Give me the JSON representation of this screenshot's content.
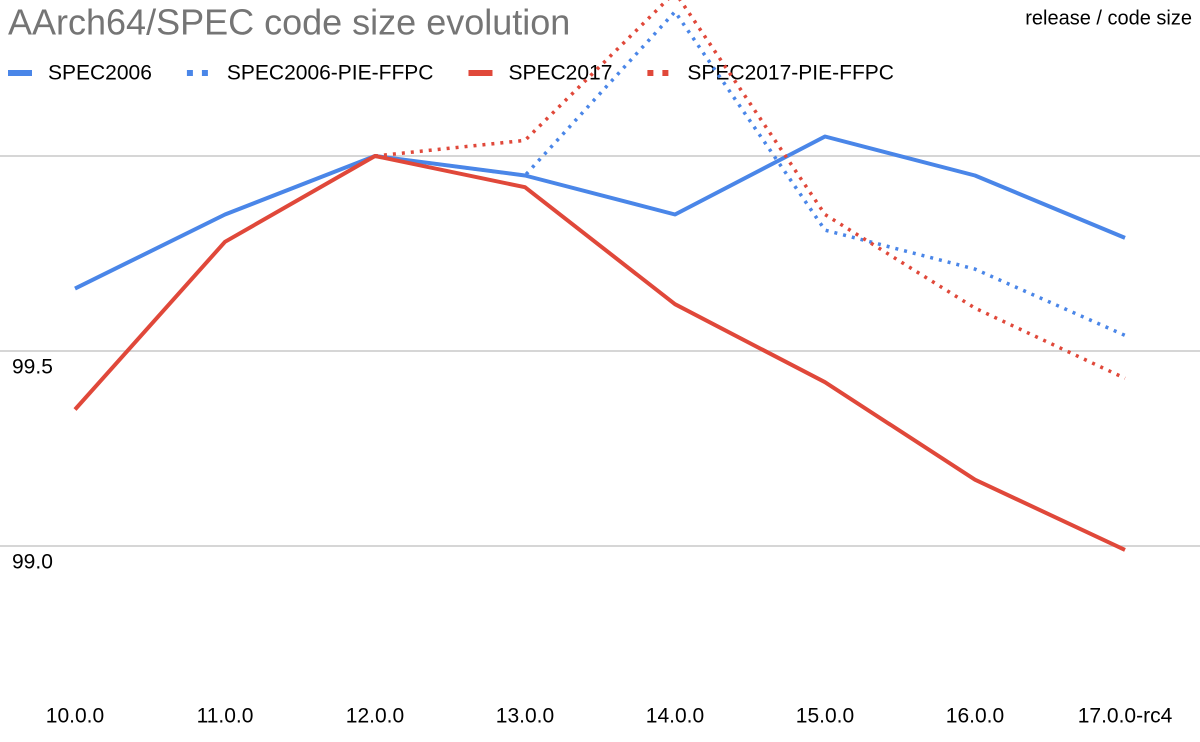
{
  "chart_data": {
    "type": "line",
    "title": "AArch64/SPEC code size evolution",
    "axis_label": "release / code size",
    "categories": [
      "10.0.0",
      "11.0.0",
      "12.0.0",
      "13.0.0",
      "14.0.0",
      "15.0.0",
      "16.0.0",
      "17.0.0-rc4"
    ],
    "series": [
      {
        "name": "SPEC2006",
        "color": "#4a86e8",
        "line_style": "solid",
        "values": [
          99.66,
          99.85,
          100.0,
          99.95,
          99.85,
          100.05,
          99.95,
          99.79
        ]
      },
      {
        "name": "SPEC2006-PIE-FFPC",
        "color": "#4a86e8",
        "line_style": "dotted",
        "values": [
          null,
          null,
          100.0,
          99.95,
          100.37,
          99.81,
          99.71,
          99.54
        ]
      },
      {
        "name": "SPEC2017",
        "color": "#e0483a",
        "line_style": "solid",
        "values": [
          99.35,
          99.78,
          100.0,
          99.92,
          99.62,
          99.42,
          99.17,
          98.99
        ]
      },
      {
        "name": "SPEC2017-PIE-FFPC",
        "color": "#e0483a",
        "line_style": "dotted",
        "values": [
          null,
          null,
          100.0,
          100.04,
          100.42,
          99.85,
          99.61,
          99.43
        ]
      }
    ],
    "ylim": [
      98.6,
      100.4
    ],
    "yticks": [
      {
        "value": 99,
        "label": "99.0"
      },
      99.5,
      {
        "value": 100,
        "label": null
      }
    ],
    "grid": true,
    "legend": "top-left"
  }
}
